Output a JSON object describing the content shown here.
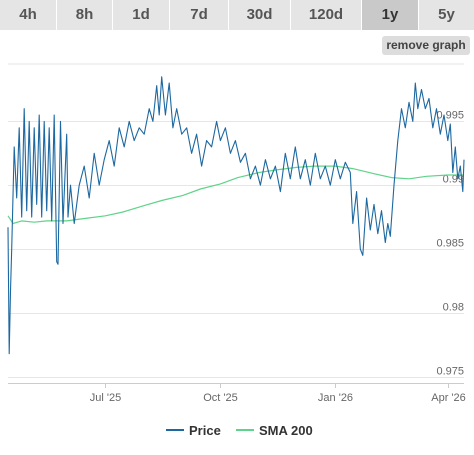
{
  "tabs": [
    {
      "label": "4h",
      "active": false
    },
    {
      "label": "8h",
      "active": false
    },
    {
      "label": "1d",
      "active": false
    },
    {
      "label": "7d",
      "active": false
    },
    {
      "label": "30d",
      "active": false
    },
    {
      "label": "120d",
      "active": false
    },
    {
      "label": "1y",
      "active": true
    },
    {
      "label": "5y",
      "active": false
    }
  ],
  "remove_graph_label": "remove graph",
  "colors": {
    "price": "#1d68a0",
    "sma": "#5fd38a",
    "grid": "#e6e6e6",
    "axis_text": "#666666"
  },
  "chart_data": {
    "type": "line",
    "title": "",
    "xlabel": "",
    "ylabel": "",
    "x_range": [
      "2025-04-14",
      "2026-04-14"
    ],
    "ylim": [
      0.9745,
      0.9995
    ],
    "yticks": [
      0.975,
      0.98,
      0.985,
      0.99,
      0.995
    ],
    "ytick_labels": [
      "0.975",
      "0.98",
      "0.985",
      "0.99",
      "0.995"
    ],
    "xticks": [
      "2025-07-01",
      "2025-10-01",
      "2026-01-01",
      "2026-04-01"
    ],
    "xtick_labels": [
      "Jul '25",
      "Oct '25",
      "Jan '26",
      "Apr '26"
    ],
    "grid": "horizontal",
    "legend_position": "bottom",
    "series": [
      {
        "name": "Price",
        "color": "#1d68a0",
        "points": [
          [
            "2025-04-14",
            0.9867
          ],
          [
            "2025-04-15",
            0.9768
          ],
          [
            "2025-04-16",
            0.9817
          ],
          [
            "2025-04-17",
            0.985
          ],
          [
            "2025-04-19",
            0.993
          ],
          [
            "2025-04-21",
            0.989
          ],
          [
            "2025-04-23",
            0.9945
          ],
          [
            "2025-04-25",
            0.9875
          ],
          [
            "2025-04-27",
            0.996
          ],
          [
            "2025-04-29",
            0.988
          ],
          [
            "2025-05-01",
            0.995
          ],
          [
            "2025-05-03",
            0.9875
          ],
          [
            "2025-05-05",
            0.9945
          ],
          [
            "2025-05-07",
            0.9885
          ],
          [
            "2025-05-09",
            0.9955
          ],
          [
            "2025-05-11",
            0.9875
          ],
          [
            "2025-05-13",
            0.995
          ],
          [
            "2025-05-15",
            0.988
          ],
          [
            "2025-05-17",
            0.9945
          ],
          [
            "2025-05-19",
            0.9872
          ],
          [
            "2025-05-21",
            0.9955
          ],
          [
            "2025-05-23",
            0.984
          ],
          [
            "2025-05-24",
            0.9838
          ],
          [
            "2025-05-26",
            0.995
          ],
          [
            "2025-05-28",
            0.987
          ],
          [
            "2025-05-31",
            0.994
          ],
          [
            "2025-06-01",
            0.9875
          ],
          [
            "2025-06-03",
            0.99
          ],
          [
            "2025-06-06",
            0.987
          ],
          [
            "2025-06-10",
            0.99
          ],
          [
            "2025-06-14",
            0.9915
          ],
          [
            "2025-06-18",
            0.989
          ],
          [
            "2025-06-22",
            0.9925
          ],
          [
            "2025-06-26",
            0.99
          ],
          [
            "2025-06-30",
            0.992
          ],
          [
            "2025-07-04",
            0.9935
          ],
          [
            "2025-07-08",
            0.9915
          ],
          [
            "2025-07-12",
            0.9945
          ],
          [
            "2025-07-16",
            0.993
          ],
          [
            "2025-07-20",
            0.995
          ],
          [
            "2025-07-24",
            0.9935
          ],
          [
            "2025-07-28",
            0.9945
          ],
          [
            "2025-08-01",
            0.994
          ],
          [
            "2025-08-05",
            0.996
          ],
          [
            "2025-08-08",
            0.995
          ],
          [
            "2025-08-11",
            0.9978
          ],
          [
            "2025-08-13",
            0.9955
          ],
          [
            "2025-08-15",
            0.9985
          ],
          [
            "2025-08-18",
            0.9955
          ],
          [
            "2025-08-21",
            0.998
          ],
          [
            "2025-08-24",
            0.9945
          ],
          [
            "2025-08-27",
            0.996
          ],
          [
            "2025-08-31",
            0.994
          ],
          [
            "2025-09-04",
            0.9945
          ],
          [
            "2025-09-08",
            0.9925
          ],
          [
            "2025-09-12",
            0.994
          ],
          [
            "2025-09-16",
            0.9915
          ],
          [
            "2025-09-20",
            0.9935
          ],
          [
            "2025-09-24",
            0.993
          ],
          [
            "2025-09-28",
            0.995
          ],
          [
            "2025-10-01",
            0.9935
          ],
          [
            "2025-10-05",
            0.9945
          ],
          [
            "2025-10-09",
            0.9925
          ],
          [
            "2025-10-13",
            0.9935
          ],
          [
            "2025-10-17",
            0.9918
          ],
          [
            "2025-10-21",
            0.9925
          ],
          [
            "2025-10-25",
            0.9905
          ],
          [
            "2025-10-29",
            0.9915
          ],
          [
            "2025-11-02",
            0.99
          ],
          [
            "2025-11-06",
            0.992
          ],
          [
            "2025-11-10",
            0.9905
          ],
          [
            "2025-11-14",
            0.9915
          ],
          [
            "2025-11-18",
            0.9895
          ],
          [
            "2025-11-22",
            0.9925
          ],
          [
            "2025-11-26",
            0.9905
          ],
          [
            "2025-11-30",
            0.993
          ],
          [
            "2025-12-04",
            0.9905
          ],
          [
            "2025-12-08",
            0.992
          ],
          [
            "2025-12-12",
            0.99
          ],
          [
            "2025-12-16",
            0.9925
          ],
          [
            "2025-12-20",
            0.9905
          ],
          [
            "2025-12-24",
            0.9915
          ],
          [
            "2025-12-28",
            0.99
          ],
          [
            "2026-01-01",
            0.992
          ],
          [
            "2026-01-05",
            0.9905
          ],
          [
            "2026-01-09",
            0.9918
          ],
          [
            "2026-01-13",
            0.991
          ],
          [
            "2026-01-15",
            0.987
          ],
          [
            "2026-01-18",
            0.9895
          ],
          [
            "2026-01-21",
            0.985
          ],
          [
            "2026-01-23",
            0.9845
          ],
          [
            "2026-01-26",
            0.989
          ],
          [
            "2026-01-29",
            0.9865
          ],
          [
            "2026-02-01",
            0.9885
          ],
          [
            "2026-02-04",
            0.9862
          ],
          [
            "2026-02-07",
            0.988
          ],
          [
            "2026-02-10",
            0.9855
          ],
          [
            "2026-02-12",
            0.987
          ],
          [
            "2026-02-14",
            0.986
          ],
          [
            "2026-02-17",
            0.99
          ],
          [
            "2026-02-20",
            0.9935
          ],
          [
            "2026-02-23",
            0.996
          ],
          [
            "2026-02-26",
            0.9945
          ],
          [
            "2026-03-01",
            0.9965
          ],
          [
            "2026-03-04",
            0.995
          ],
          [
            "2026-03-06",
            0.998
          ],
          [
            "2026-03-08",
            0.996
          ],
          [
            "2026-03-11",
            0.9975
          ],
          [
            "2026-03-14",
            0.996
          ],
          [
            "2026-03-17",
            0.9968
          ],
          [
            "2026-03-20",
            0.9945
          ],
          [
            "2026-03-23",
            0.996
          ],
          [
            "2026-03-26",
            0.994
          ],
          [
            "2026-03-29",
            0.9955
          ],
          [
            "2026-04-01",
            0.9935
          ],
          [
            "2026-04-03",
            0.9948
          ],
          [
            "2026-04-05",
            0.991
          ],
          [
            "2026-04-07",
            0.993
          ],
          [
            "2026-04-09",
            0.9905
          ],
          [
            "2026-04-11",
            0.9915
          ],
          [
            "2026-04-13",
            0.9895
          ],
          [
            "2026-04-14",
            0.992
          ]
        ]
      },
      {
        "name": "SMA 200",
        "color": "#5fd38a",
        "points": [
          [
            "2025-04-14",
            0.9876
          ],
          [
            "2025-04-18",
            0.987
          ],
          [
            "2025-04-25",
            0.9872
          ],
          [
            "2025-05-05",
            0.9871
          ],
          [
            "2025-05-15",
            0.9872
          ],
          [
            "2025-05-31",
            0.9872
          ],
          [
            "2025-06-15",
            0.9874
          ],
          [
            "2025-07-01",
            0.9876
          ],
          [
            "2025-07-15",
            0.9879
          ],
          [
            "2025-08-01",
            0.9884
          ],
          [
            "2025-08-15",
            0.9888
          ],
          [
            "2025-09-01",
            0.9892
          ],
          [
            "2025-09-15",
            0.9897
          ],
          [
            "2025-10-01",
            0.9901
          ],
          [
            "2025-10-15",
            0.9906
          ],
          [
            "2025-11-01",
            0.991
          ],
          [
            "2025-11-15",
            0.9912
          ],
          [
            "2025-12-01",
            0.9914
          ],
          [
            "2025-12-15",
            0.9915
          ],
          [
            "2026-01-01",
            0.9915
          ],
          [
            "2026-01-15",
            0.9913
          ],
          [
            "2026-02-01",
            0.9909
          ],
          [
            "2026-02-15",
            0.9906
          ],
          [
            "2026-03-01",
            0.9905
          ],
          [
            "2026-03-15",
            0.9907
          ],
          [
            "2026-04-01",
            0.9908
          ],
          [
            "2026-04-14",
            0.9908
          ]
        ]
      }
    ]
  }
}
